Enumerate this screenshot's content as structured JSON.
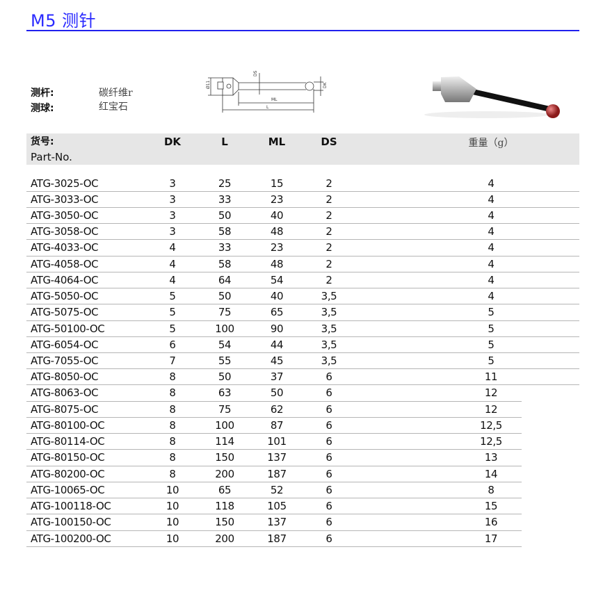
{
  "title": "M5 测针",
  "specs": [
    {
      "label": "测杆:",
      "value": "碳纤维r"
    },
    {
      "label": "测球:",
      "value": "红宝石"
    }
  ],
  "drawing": {
    "labels": [
      "Ø11",
      "DS",
      "DK",
      "ML",
      "L"
    ]
  },
  "table": {
    "headers": {
      "part": "货号:",
      "part_en": "Part-No.",
      "dk": "DK",
      "l": "L",
      "ml": "ML",
      "ds": "DS",
      "weight": "重量（g）"
    },
    "rows": [
      [
        "ATG-3025-OC",
        "3",
        "25",
        "15",
        "2",
        "4"
      ],
      [
        "ATG-3033-OC",
        "3",
        "33",
        "23",
        "2",
        "4"
      ],
      [
        "ATG-3050-OC",
        "3",
        "50",
        "40",
        "2",
        "4"
      ],
      [
        "ATG-3058-OC",
        "3",
        "58",
        "48",
        "2",
        "4"
      ],
      [
        "ATG-4033-OC",
        "4",
        "33",
        "23",
        "2",
        "4"
      ],
      [
        "ATG-4058-OC",
        "4",
        "58",
        "48",
        "2",
        "4"
      ],
      [
        "ATG-4064-OC",
        "4",
        "64",
        "54",
        "2",
        "4"
      ],
      [
        "ATG-5050-OC",
        "5",
        "50",
        "40",
        "3,5",
        "4"
      ],
      [
        "ATG-5075-OC",
        "5",
        "75",
        "65",
        "3,5",
        "5"
      ],
      [
        "ATG-50100-OC",
        "5",
        "100",
        "90",
        "3,5",
        "5"
      ],
      [
        "ATG-6054-OC",
        "6",
        "54",
        "44",
        "3,5",
        "5"
      ],
      [
        "ATG-7055-OC",
        "7",
        "55",
        "45",
        "3,5",
        "5"
      ],
      [
        "ATG-8050-OC",
        "8",
        "50",
        "37",
        "6",
        "11"
      ],
      [
        "ATG-8063-OC",
        "8",
        "63",
        "50",
        "6",
        "12"
      ],
      [
        "ATG-8075-OC",
        "8",
        "75",
        "62",
        "6",
        "12"
      ],
      [
        "ATG-80100-OC",
        "8",
        "100",
        "87",
        "6",
        "12,5"
      ],
      [
        "ATG-80114-OC",
        "8",
        "114",
        "101",
        "6",
        "12,5"
      ],
      [
        "ATG-80150-OC",
        "8",
        "150",
        "137",
        "6",
        "13"
      ],
      [
        "ATG-80200-OC",
        "8",
        "200",
        "187",
        "6",
        "14"
      ],
      [
        "ATG-10065-OC",
        "10",
        "65",
        "52",
        "6",
        "8"
      ],
      [
        "ATG-100118-OC",
        "10",
        "118",
        "105",
        "6",
        "15"
      ],
      [
        "ATG-100150-OC",
        "10",
        "150",
        "137",
        "6",
        "16"
      ],
      [
        "ATG-100200-OC",
        "10",
        "200",
        "187",
        "6",
        "17"
      ]
    ]
  }
}
